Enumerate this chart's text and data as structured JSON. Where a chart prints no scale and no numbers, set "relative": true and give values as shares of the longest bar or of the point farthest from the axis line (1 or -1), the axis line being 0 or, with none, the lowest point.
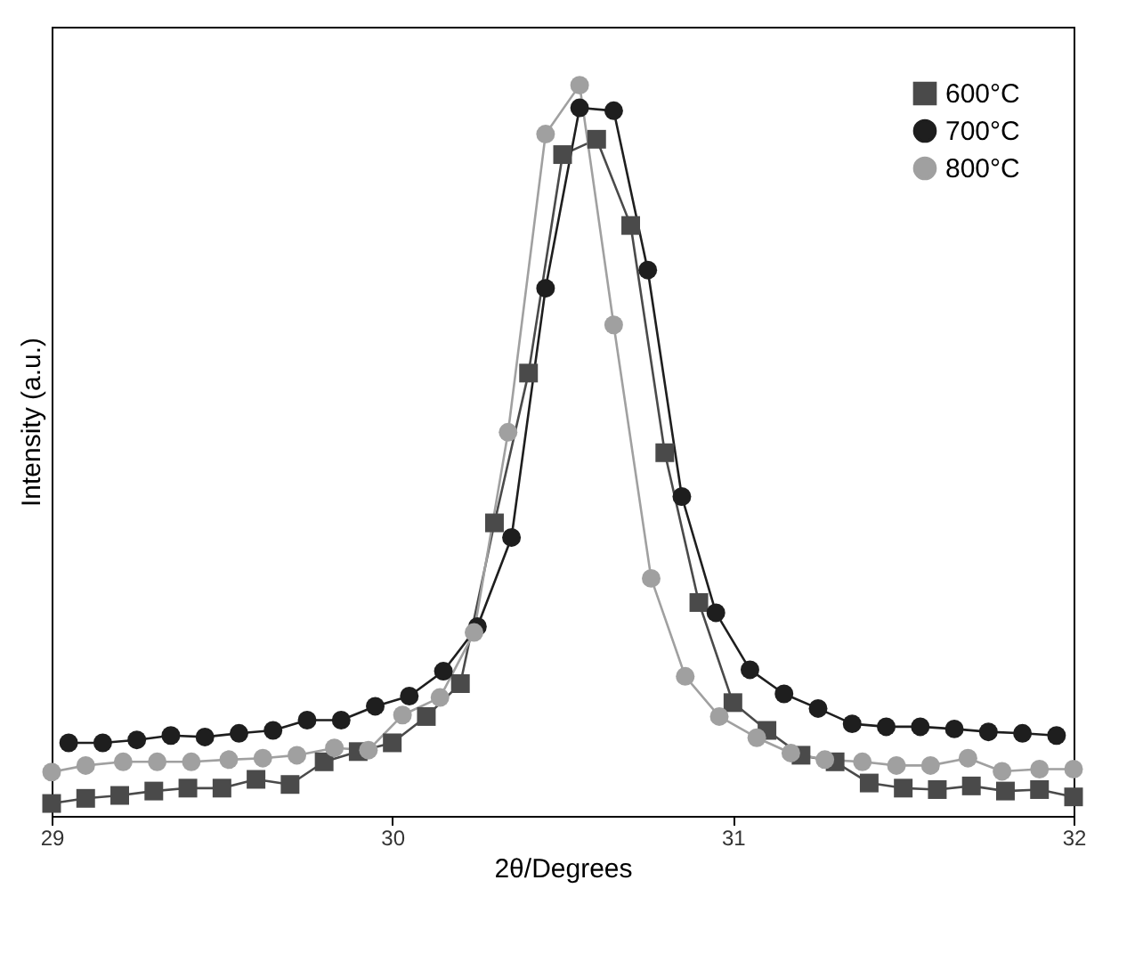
{
  "chart_data": {
    "type": "line",
    "xlabel": "2θ/Degrees",
    "ylabel": "Intensity (a.u.)",
    "relative": true,
    "xlim": [
      29,
      32
    ],
    "xticks": [
      29,
      30,
      31,
      32
    ],
    "tick_labels": "x",
    "grid": false,
    "legend": "top right",
    "line_style": "solid",
    "series": [
      {
        "name": "600°C",
        "color": "#4a4a4a",
        "marker": "square",
        "x": [
          29.0,
          29.1,
          29.2,
          29.3,
          29.4,
          29.5,
          29.6,
          29.7,
          29.8,
          29.9,
          30.0,
          30.1,
          30.2,
          30.3,
          30.4,
          30.5,
          30.6,
          30.7,
          30.8,
          30.9,
          31.0,
          31.1,
          31.2,
          31.3,
          31.4,
          31.5,
          31.6,
          31.7,
          31.8,
          31.9,
          32.0
        ],
        "values": [
          0.017,
          0.024,
          0.028,
          0.034,
          0.038,
          0.038,
          0.05,
          0.043,
          0.074,
          0.088,
          0.1,
          0.136,
          0.181,
          0.401,
          0.606,
          0.905,
          0.926,
          0.808,
          0.497,
          0.292,
          0.155,
          0.117,
          0.083,
          0.074,
          0.045,
          0.038,
          0.036,
          0.041,
          0.034,
          0.036,
          0.026
        ]
      },
      {
        "name": "700°C",
        "color": "#1e1e1e",
        "marker": "circle",
        "x": [
          29.05,
          29.15,
          29.25,
          29.35,
          29.45,
          29.55,
          29.65,
          29.75,
          29.85,
          29.95,
          30.05,
          30.15,
          30.25,
          30.35,
          30.45,
          30.55,
          30.65,
          30.75,
          30.85,
          30.95,
          31.05,
          31.15,
          31.25,
          31.35,
          31.45,
          31.55,
          31.65,
          31.75,
          31.85,
          31.95
        ],
        "values": [
          0.1,
          0.1,
          0.104,
          0.11,
          0.108,
          0.113,
          0.117,
          0.131,
          0.131,
          0.15,
          0.164,
          0.198,
          0.259,
          0.381,
          0.722,
          0.969,
          0.965,
          0.747,
          0.437,
          0.278,
          0.2,
          0.167,
          0.147,
          0.126,
          0.122,
          0.122,
          0.119,
          0.115,
          0.113,
          0.11
        ]
      },
      {
        "name": "800°C",
        "color": "#a0a0a0",
        "marker": "circle",
        "x": [
          29.0,
          29.1,
          29.21,
          29.31,
          29.41,
          29.52,
          29.62,
          29.72,
          29.83,
          29.93,
          30.03,
          30.14,
          30.24,
          30.34,
          30.45,
          30.55,
          30.65,
          30.76,
          30.86,
          30.96,
          31.07,
          31.17,
          31.27,
          31.38,
          31.48,
          31.58,
          31.69,
          31.79,
          31.9,
          32.0
        ],
        "values": [
          0.06,
          0.069,
          0.074,
          0.074,
          0.074,
          0.077,
          0.079,
          0.083,
          0.093,
          0.09,
          0.138,
          0.162,
          0.251,
          0.525,
          0.933,
          1.0,
          0.672,
          0.325,
          0.191,
          0.136,
          0.107,
          0.086,
          0.077,
          0.074,
          0.069,
          0.069,
          0.079,
          0.061,
          0.064,
          0.064
        ]
      }
    ]
  }
}
